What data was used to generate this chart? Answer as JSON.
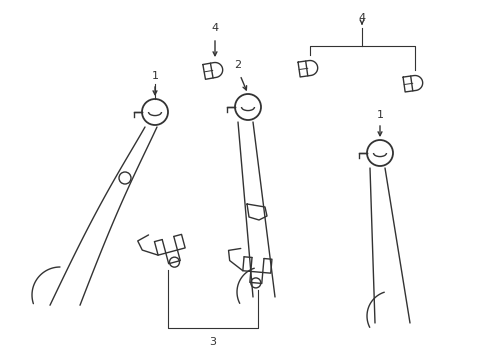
{
  "bg_color": "#ffffff",
  "line_color": "#333333",
  "lw": 1.0,
  "fig_w": 4.89,
  "fig_h": 3.6,
  "dpi": 100
}
